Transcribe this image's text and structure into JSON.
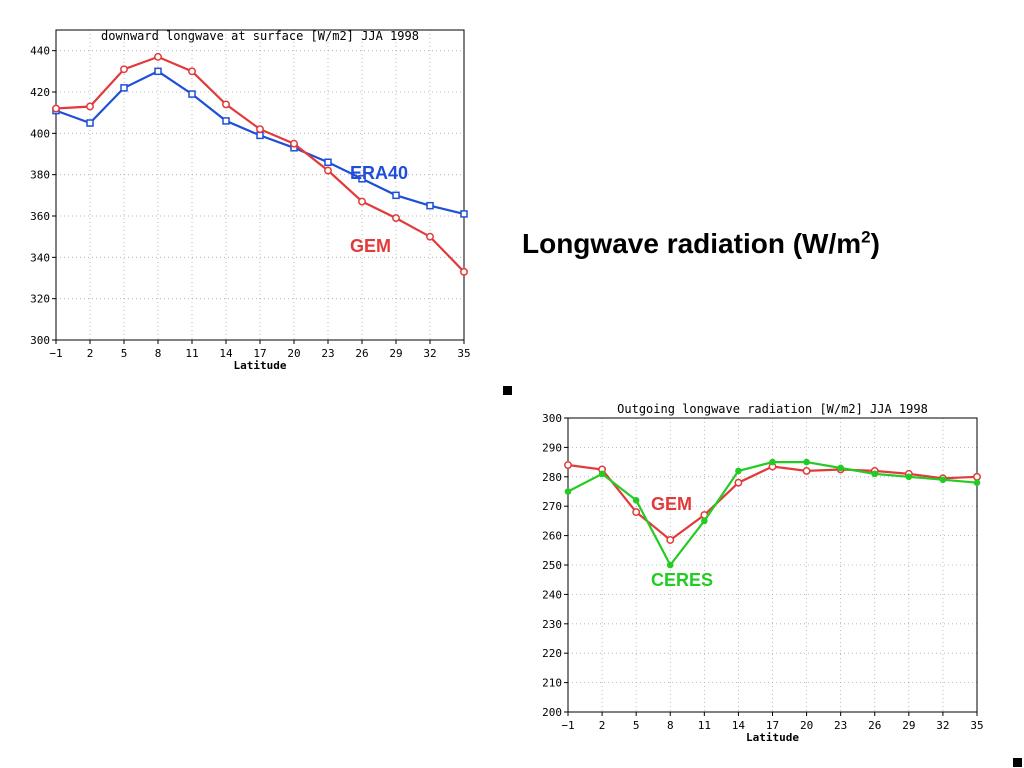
{
  "slide": {
    "title_main": "Longwave radiation (W/m",
    "title_sup": "2",
    "title_end": ")"
  },
  "chart_data": [
    {
      "type": "line",
      "title": "downward longwave at surface [W/m2] JJA 1998",
      "xlabel": "Latitude",
      "ylabel": "",
      "x": [
        -1,
        2,
        5,
        8,
        11,
        14,
        17,
        20,
        23,
        26,
        29,
        32,
        35
      ],
      "xlim": [
        -1,
        35
      ],
      "ylim": [
        300,
        450
      ],
      "yticks": [
        300,
        320,
        340,
        360,
        380,
        400,
        420,
        440
      ],
      "grid": true,
      "series": [
        {
          "name": "ERA40",
          "color": "#1f4fd8",
          "marker": "square",
          "values": [
            411,
            405,
            422,
            430,
            419,
            406,
            399,
            393,
            386,
            378,
            370,
            365,
            361
          ]
        },
        {
          "name": "GEM",
          "color": "#e23a3a",
          "marker": "circle",
          "values": [
            412,
            413,
            431,
            437,
            430,
            414,
            402,
            395,
            382,
            367,
            359,
            350,
            333
          ]
        }
      ]
    },
    {
      "type": "line",
      "title": "Outgoing longwave radiation [W/m2] JJA 1998",
      "xlabel": "Latitude",
      "ylabel": "",
      "x": [
        -1,
        2,
        5,
        8,
        11,
        14,
        17,
        20,
        23,
        26,
        29,
        32,
        35
      ],
      "xlim": [
        -1,
        35
      ],
      "ylim": [
        200,
        300
      ],
      "yticks": [
        200,
        210,
        220,
        230,
        240,
        250,
        260,
        270,
        280,
        290,
        300
      ],
      "grid": true,
      "series": [
        {
          "name": "GEM",
          "color": "#e23a3a",
          "marker": "circle",
          "values": [
            284,
            282.5,
            268,
            258.5,
            267,
            278,
            283.5,
            282,
            282.5,
            282,
            281,
            279.5,
            280
          ]
        },
        {
          "name": "CERES",
          "color": "#22cc22",
          "marker": "dot",
          "values": [
            275,
            281,
            272,
            250,
            265,
            282,
            285,
            285,
            283,
            281,
            280,
            279,
            278
          ]
        }
      ]
    }
  ]
}
